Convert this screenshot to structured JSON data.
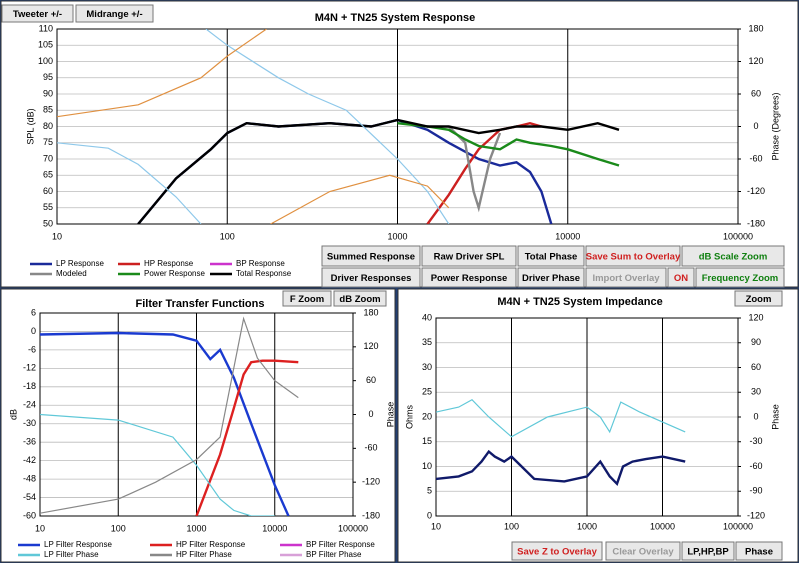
{
  "chart_data": [
    {
      "type": "line",
      "title": "M4N + TN25    System Response",
      "ylabel": "SPL (dB)",
      "y2label": "Phase (Degrees)",
      "log_x": true,
      "grid": true,
      "xlim": [
        10,
        100000
      ],
      "xticks": [
        10,
        100,
        1000,
        10000,
        100000
      ],
      "ylim": [
        50,
        110
      ],
      "yticks": [
        50,
        55,
        60,
        65,
        70,
        75,
        80,
        85,
        90,
        95,
        100,
        105,
        110
      ],
      "y2lim": [
        -180,
        180
      ],
      "y2ticks": [
        -180,
        -120,
        -60,
        0,
        60,
        120,
        180
      ],
      "buttons": [
        "Tweeter +/-",
        "Midrange +/-",
        "Summed Response",
        "Raw Driver SPL",
        "Total Phase",
        "Save Sum to Overlay",
        "dB Scale Zoom",
        "Driver Responses",
        "Power Response",
        "Driver Phase",
        "Import Overlay",
        "ON",
        "Frequency Zoom"
      ],
      "series": [
        {
          "name": "LP Response",
          "color": "#1a2a9a",
          "x": [
            30,
            50,
            80,
            100,
            130,
            200,
            400,
            700,
            1000,
            1500,
            2000,
            3000,
            4000,
            5000,
            6000,
            7000,
            8000
          ],
          "values": [
            50,
            64,
            73,
            78,
            81,
            80,
            81,
            80,
            82,
            79,
            75,
            70,
            68,
            69,
            66,
            60,
            50
          ]
        },
        {
          "name": "HP Response",
          "color": "#cc2020",
          "x": [
            1500,
            2000,
            2500,
            3000,
            4000,
            5000,
            6000,
            7000
          ],
          "values": [
            50,
            59,
            67,
            73,
            79,
            80,
            81,
            80
          ]
        },
        {
          "name": "BP Response",
          "color": "#cc33cc",
          "x": [],
          "values": []
        },
        {
          "name": "Modeled",
          "color": "#888888",
          "x": [
            2000,
            2500,
            2800,
            3000,
            3500,
            4000
          ],
          "values": [
            80,
            75,
            60,
            55,
            70,
            78
          ]
        },
        {
          "name": "Power Response",
          "color": "#1a8a1a",
          "x": [
            1000,
            1500,
            2000,
            2500,
            3000,
            4000,
            5000,
            6000,
            8000,
            10000,
            15000,
            20000
          ],
          "values": [
            81,
            80,
            79,
            76,
            74,
            73,
            76,
            75,
            74,
            73,
            70,
            68
          ]
        },
        {
          "name": "Total Response",
          "color": "#000000",
          "x": [
            30,
            50,
            80,
            100,
            130,
            200,
            400,
            700,
            1000,
            1500,
            2000,
            3000,
            4000,
            5000,
            7000,
            10000,
            15000,
            20000
          ],
          "values": [
            50,
            64,
            73,
            78,
            81,
            80,
            81,
            80,
            82,
            80,
            80,
            78,
            79,
            80,
            80,
            79,
            81,
            79
          ]
        },
        {
          "color": "#8ec8ea",
          "axis": "y2",
          "x": [
            10,
            20,
            30,
            50,
            70,
            null,
            75,
            100,
            200,
            300,
            500,
            1000,
            1500,
            2000
          ],
          "values": [
            -30,
            -40,
            -70,
            -130,
            -180,
            null,
            180,
            150,
            90,
            60,
            30,
            -60,
            -120,
            -180
          ]
        },
        {
          "color": "#e09040",
          "axis": "y2",
          "x": [
            10,
            30,
            70,
            100,
            170,
            null,
            180,
            400,
            900,
            1500,
            2000
          ],
          "values": [
            18,
            40,
            90,
            130,
            180,
            null,
            -180,
            -120,
            -90,
            -110,
            -150
          ]
        }
      ]
    },
    {
      "type": "line",
      "title": "Filter Transfer Functions",
      "ylabel": "dB",
      "y2label": "Phase",
      "log_x": true,
      "grid": true,
      "xlim": [
        10,
        100000
      ],
      "xticks": [
        10,
        100,
        1000,
        10000,
        100000
      ],
      "ylim": [
        -60,
        6
      ],
      "yticks": [
        -60,
        -54,
        -48,
        -42,
        -36,
        -30,
        -24,
        -18,
        -12,
        -6,
        0,
        6
      ],
      "y2lim": [
        -180,
        180
      ],
      "y2ticks": [
        -180,
        -120,
        -60,
        0,
        60,
        120,
        180
      ],
      "buttons": [
        "F Zoom",
        "dB Zoom"
      ],
      "series": [
        {
          "name": "LP Filter Response",
          "color": "#1a3ad0",
          "x": [
            10,
            100,
            500,
            1000,
            1500,
            2000,
            3000,
            5000,
            10000,
            15000
          ],
          "values": [
            -1,
            -0.5,
            -1,
            -3,
            -9,
            -6,
            -15,
            -30,
            -50,
            -60
          ]
        },
        {
          "name": "HP Filter Response",
          "color": "#dd2020",
          "x": [
            1000,
            2000,
            3000,
            4000,
            5000,
            7000,
            10000,
            20000
          ],
          "values": [
            -60,
            -40,
            -25,
            -14,
            -10,
            -9.5,
            -9.5,
            -10
          ]
        },
        {
          "name": "BP Filter Response",
          "color": "#cc33cc",
          "x": [],
          "values": []
        },
        {
          "name": "LP Filter Phase",
          "color": "#60c8d8",
          "axis": "y2",
          "x": [
            10,
            100,
            500,
            1000,
            2000,
            3000,
            5000,
            10000
          ],
          "values": [
            0,
            -10,
            -40,
            -90,
            -150,
            -170,
            -180,
            -180
          ]
        },
        {
          "name": "HP Filter Phase",
          "color": "#888888",
          "axis": "y2",
          "x": [
            10,
            100,
            300,
            1000,
            2000,
            4000,
            6000,
            10000,
            20000
          ],
          "values": [
            -175,
            -150,
            -120,
            -80,
            -40,
            170,
            100,
            60,
            30
          ]
        },
        {
          "name": "BP Filter Phase",
          "color": "#d8a0d8",
          "axis": "y2",
          "x": [],
          "values": []
        }
      ]
    },
    {
      "type": "line",
      "title": "M4N + TN25    System Impedance",
      "ylabel": "Ohms",
      "y2label": "Phase",
      "log_x": true,
      "grid": true,
      "xlim": [
        10,
        100000
      ],
      "xticks": [
        10,
        100,
        1000,
        10000,
        100000
      ],
      "ylim": [
        0,
        40
      ],
      "yticks": [
        0,
        5,
        10,
        15,
        20,
        25,
        30,
        35,
        40
      ],
      "y2lim": [
        -120,
        120
      ],
      "y2ticks": [
        -120,
        -90,
        -60,
        -30,
        0,
        30,
        60,
        90,
        120
      ],
      "buttons": [
        "Zoom",
        "Save Z to Overlay",
        "Clear Overlay",
        "LP,HP,BP",
        "Phase"
      ],
      "series": [
        {
          "color": "#101a6a",
          "x": [
            10,
            20,
            30,
            40,
            50,
            60,
            80,
            100,
            200,
            500,
            1000,
            1500,
            2000,
            2500,
            3000,
            4000,
            6000,
            10000,
            20000
          ],
          "values": [
            7.5,
            8,
            9,
            11,
            13,
            12,
            11,
            12,
            7.5,
            7,
            8,
            11,
            8,
            6.5,
            10,
            11,
            11.5,
            12,
            11
          ]
        },
        {
          "color": "#60c8d8",
          "axis": "y2",
          "x": [
            10,
            20,
            30,
            50,
            100,
            300,
            1000,
            1500,
            2000,
            2800,
            5000,
            20000
          ],
          "values": [
            6,
            12,
            21,
            0,
            -24,
            0,
            12,
            0,
            -18,
            18,
            6,
            -18
          ]
        }
      ]
    }
  ]
}
